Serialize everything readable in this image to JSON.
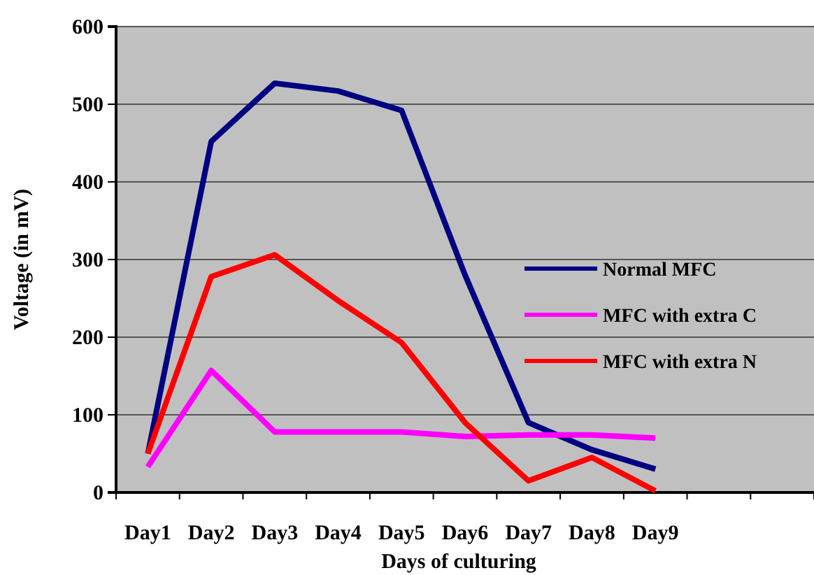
{
  "chart_data": {
    "type": "line",
    "xlabel": "Days of culturing",
    "ylabel": "Voltage (in mV)",
    "categories": [
      "Day1",
      "Day2",
      "Day3",
      "Day4",
      "Day5",
      "Day6",
      "Day7",
      "Day8",
      "Day9",
      null,
      null
    ],
    "series": [
      {
        "name": "Normal MFC",
        "color": "#000080",
        "values": [
          50,
          452,
          527,
          517,
          492,
          280,
          90,
          55,
          30,
          null,
          null
        ]
      },
      {
        "name": "MFC with extra C",
        "color": "#ff00ff",
        "values": [
          33,
          157,
          78,
          78,
          78,
          72,
          74,
          74,
          70,
          null,
          null
        ]
      },
      {
        "name": "MFC with extra N",
        "color": "#ff0000",
        "values": [
          50,
          278,
          306,
          247,
          193,
          90,
          15,
          45,
          2,
          null,
          null
        ]
      }
    ],
    "ylim": [
      0,
      600
    ],
    "yticks": [
      0,
      100,
      200,
      300,
      400,
      500,
      600
    ],
    "grid": "y",
    "legend": "right",
    "marker": "none",
    "line_style": "solid"
  }
}
